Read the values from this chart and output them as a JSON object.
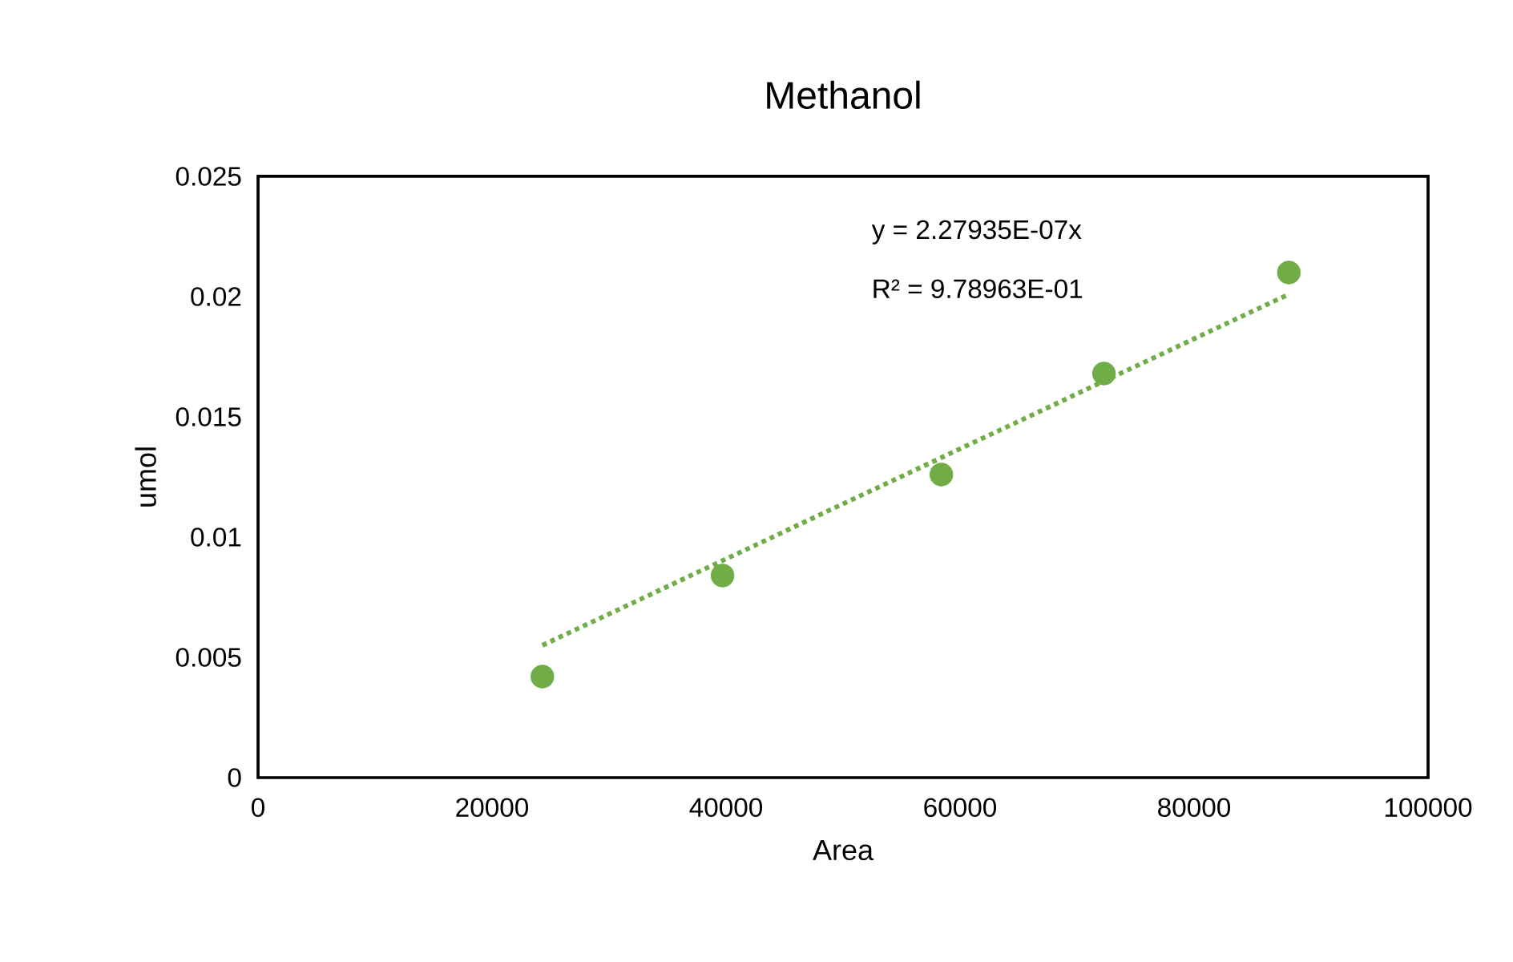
{
  "chart_data": {
    "type": "scatter",
    "title": "Methanol",
    "xlabel": "Area",
    "ylabel": "umol",
    "xlim": [
      0,
      100000
    ],
    "ylim": [
      0,
      0.025
    ],
    "xticks": [
      0,
      20000,
      40000,
      60000,
      80000,
      100000
    ],
    "yticks": [
      0,
      0.005,
      0.01,
      0.015,
      0.02,
      0.025
    ],
    "marker": "circle",
    "grid": false,
    "legend": false,
    "annotations": [
      "y = 2.27935E-07x",
      "R² = 9.78963E-01"
    ],
    "series": [
      {
        "color": "#70ad47",
        "x": [
          24300,
          39700,
          58400,
          72300,
          88100
        ],
        "values": [
          0.0042,
          0.0084,
          0.0126,
          0.0168,
          0.021
        ]
      },
      {
        "type": "line",
        "color": "#70ad47",
        "line_style": "dotted",
        "marker": "none",
        "x": [
          24300,
          88100
        ],
        "values": [
          0.0055,
          0.0201
        ]
      }
    ]
  }
}
